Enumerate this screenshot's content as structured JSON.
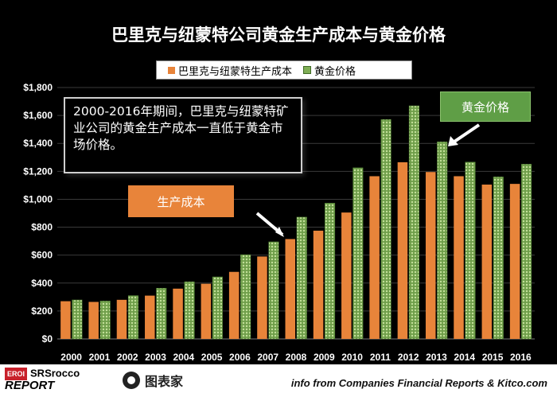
{
  "title": "巴里克与纽蒙特公司黄金生产成本与黄金价格",
  "legend": {
    "cost": "巴里克与纽蒙特生产成本",
    "price": "黄金价格"
  },
  "annotations": {
    "note": "2000-2016年期间，巴里克与纽蒙特矿业公司的黄金生产成本一直低于黄金市场价格。",
    "cost_label": "生产成本",
    "price_label": "黄金价格"
  },
  "footer": {
    "srs_tag": "EROI",
    "srs_name": "SRSrocco",
    "srs_report": "REPORT",
    "brand": "图表家",
    "source": "info from Companies Financial Reports & Kitco.com"
  },
  "colors": {
    "cost": "#e8843a",
    "price": "#7fae55",
    "price_dot": "#b9d98f",
    "axis_text": "#ffffff"
  },
  "chart_data": {
    "type": "bar",
    "title": "巴里克与纽蒙特公司黄金生产成本与黄金价格",
    "categories": [
      "2000",
      "2001",
      "2002",
      "2003",
      "2004",
      "2005",
      "2006",
      "2007",
      "2008",
      "2009",
      "2010",
      "2011",
      "2012",
      "2013",
      "2014",
      "2015",
      "2016"
    ],
    "series": [
      {
        "name": "巴里克与纽蒙特生产成本",
        "values": [
          270,
          265,
          280,
          310,
          360,
          395,
          480,
          590,
          715,
          775,
          905,
          1165,
          1265,
          1195,
          1165,
          1105,
          1110
        ]
      },
      {
        "name": "黄金价格",
        "values": [
          279,
          271,
          310,
          363,
          409,
          444,
          603,
          695,
          872,
          972,
          1225,
          1571,
          1669,
          1411,
          1266,
          1160,
          1251
        ]
      }
    ],
    "ylim": [
      0,
      1800
    ],
    "yticks": [
      0,
      200,
      400,
      600,
      800,
      1000,
      1200,
      1400,
      1600,
      1800
    ],
    "ytick_labels": [
      "$0",
      "$200",
      "$400",
      "$600",
      "$800",
      "$1,000",
      "$1,200",
      "$1,400",
      "$1,600",
      "$1,800"
    ],
    "xlabel": "",
    "ylabel": "",
    "legend_position": "top-center"
  }
}
